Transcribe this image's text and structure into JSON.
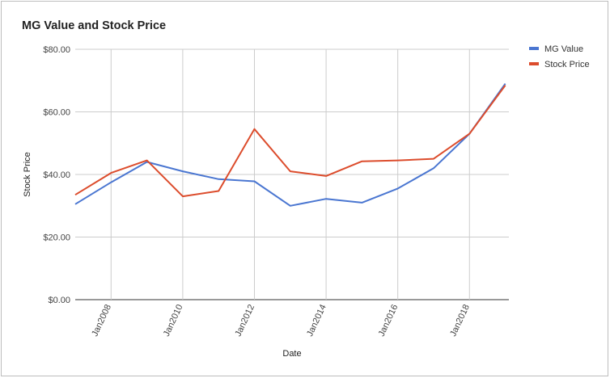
{
  "chart_data": {
    "type": "line",
    "title": "MG Value and Stock Price",
    "xlabel": "Date",
    "ylabel": "Stock Price",
    "x": [
      2007,
      2008,
      2009,
      2010,
      2011,
      2012,
      2013,
      2014,
      2015,
      2016,
      2017,
      2018,
      2019
    ],
    "x_ticks": [
      {
        "value": 2008,
        "label": "Jan2008"
      },
      {
        "value": 2010,
        "label": "Jan2010"
      },
      {
        "value": 2012,
        "label": "Jan2012"
      },
      {
        "value": 2014,
        "label": "Jan2014"
      },
      {
        "value": 2016,
        "label": "Jan2016"
      },
      {
        "value": 2018,
        "label": "Jan2018"
      }
    ],
    "xlim": [
      2007,
      2019.1
    ],
    "ylim": [
      0,
      80
    ],
    "y_ticks": [
      {
        "value": 0,
        "label": "$0.00"
      },
      {
        "value": 20,
        "label": "$20.00"
      },
      {
        "value": 40,
        "label": "$40.00"
      },
      {
        "value": 60,
        "label": "$60.00"
      },
      {
        "value": 80,
        "label": "$80.00"
      }
    ],
    "grid": true,
    "legend_position": "right",
    "series": [
      {
        "name": "MG Value",
        "color": "#4a76d1",
        "values": [
          30.5,
          37.5,
          44.0,
          41.0,
          38.5,
          37.8,
          30.0,
          32.2,
          31.0,
          35.5,
          42.0,
          53.0,
          69.0
        ]
      },
      {
        "name": "Stock Price",
        "color": "#dc4c2c",
        "values": [
          33.5,
          40.5,
          44.5,
          33.0,
          34.7,
          54.5,
          41.0,
          39.5,
          44.2,
          44.5,
          45.0,
          53.0,
          68.5
        ]
      }
    ]
  }
}
